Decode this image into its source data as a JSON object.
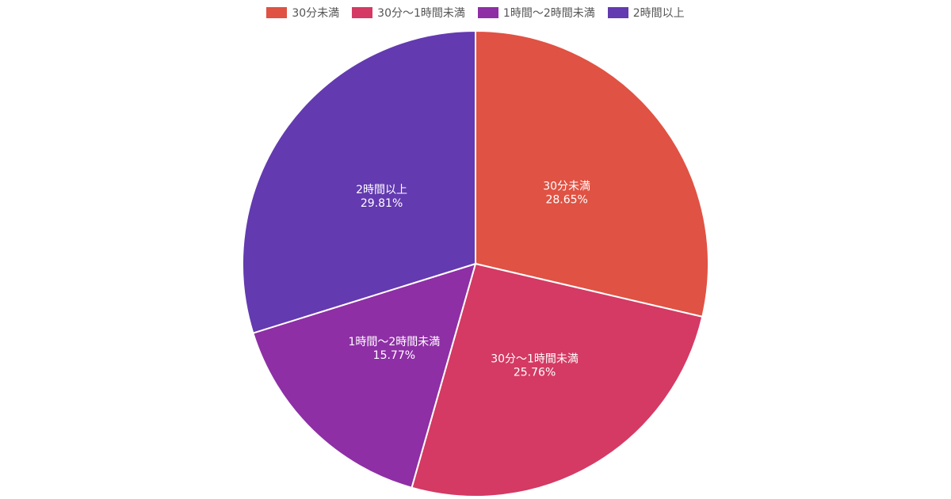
{
  "chart_data": {
    "type": "pie",
    "categories": [
      "30分未満",
      "30分〜1時間未満",
      "1時間〜2時間未満",
      "2時間以上"
    ],
    "values": [
      28.65,
      25.76,
      15.77,
      29.81
    ],
    "value_labels": [
      "28.65%",
      "25.76%",
      "15.77%",
      "29.81%"
    ],
    "colors": [
      "#e05243",
      "#d43a63",
      "#8e2fa6",
      "#633ab0"
    ],
    "legend_position": "top",
    "start_angle": "12 o'clock",
    "direction": "clockwise"
  }
}
